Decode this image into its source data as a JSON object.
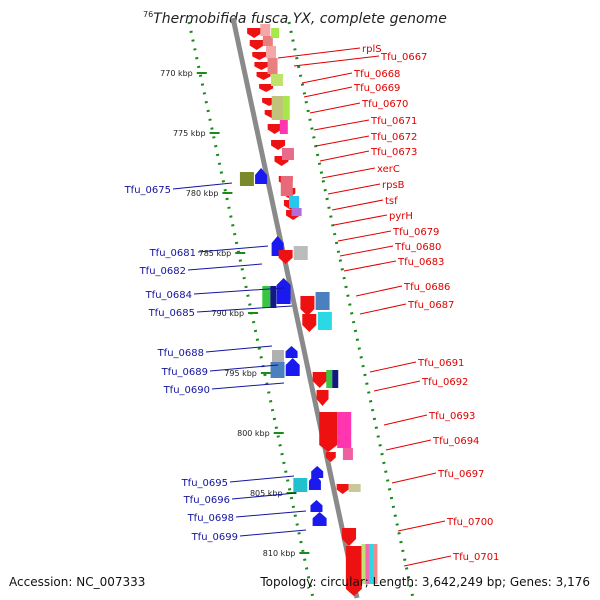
{
  "title": "Thermobifida fusca YX, complete genome",
  "title_prefix": "76",
  "footer": {
    "accession": "Accession: NC_007333",
    "summary": "Topology: circular; Length: 3,642,249 bp; Genes: 3,176"
  },
  "colors": {
    "backbone": "#8a8a8a",
    "tick_track": "#1a8a1a",
    "left_label": "#1414a0",
    "right_label": "#e00000",
    "forward_gene": "#ee1111",
    "reverse_gene": "#1a1aee"
  },
  "scale": {
    "start_kbp": 770,
    "end_kbp": 810,
    "step_kbp": 5,
    "unit": "kbp"
  },
  "scale_labels": [
    "770 kbp",
    "775 kbp",
    "780 kbp",
    "785 kbp",
    "790 kbp",
    "795 kbp",
    "800 kbp",
    "805 kbp",
    "810 kbp"
  ],
  "left_labels": [
    "Tfu_0675",
    "Tfu_0681",
    "Tfu_0682",
    "Tfu_0684",
    "Tfu_0685",
    "Tfu_0688",
    "Tfu_0689",
    "Tfu_0690",
    "Tfu_0695",
    "Tfu_0696",
    "Tfu_0698",
    "Tfu_0699"
  ],
  "right_labels": [
    "rplS",
    "Tfu_0667",
    "Tfu_0668",
    "Tfu_0669",
    "Tfu_0670",
    "Tfu_0671",
    "Tfu_0672",
    "Tfu_0673",
    "xerC",
    "rpsB",
    "tsf",
    "pyrH",
    "Tfu_0679",
    "Tfu_0680",
    "Tfu_0683",
    "Tfu_0686",
    "Tfu_0687",
    "Tfu_0691",
    "Tfu_0692",
    "Tfu_0693",
    "Tfu_0694",
    "Tfu_0697",
    "Tfu_0700",
    "Tfu_0701"
  ]
}
